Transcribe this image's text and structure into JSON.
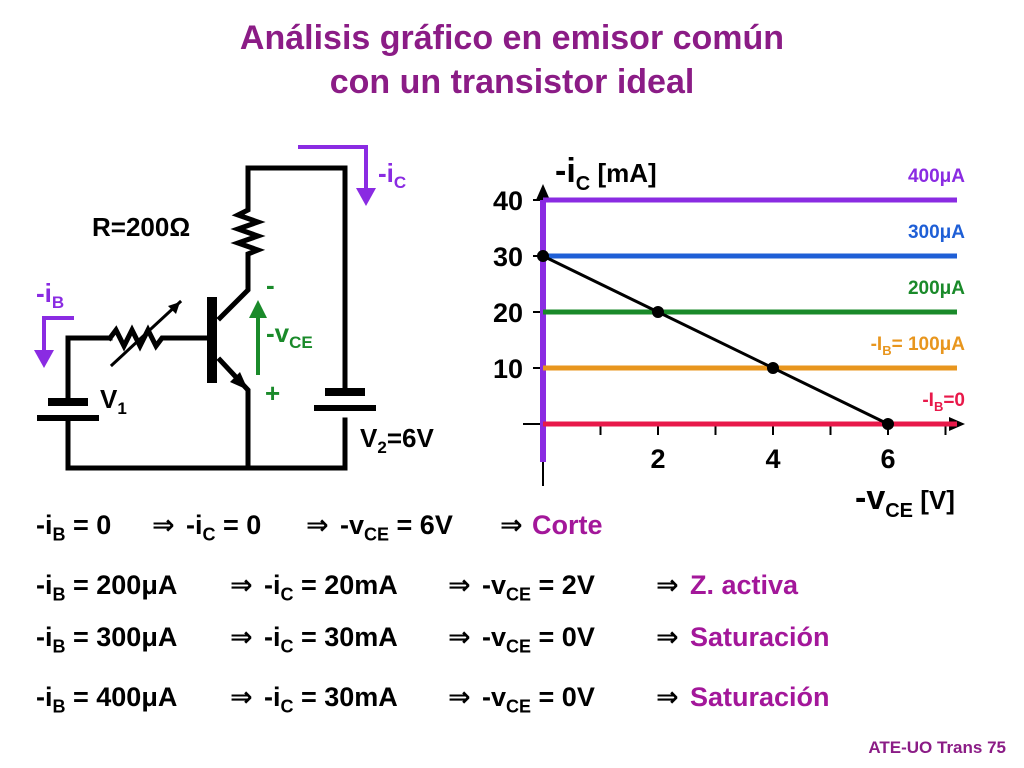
{
  "title": {
    "line1": "Análisis gráfico en emisor común",
    "line2": "con un transistor ideal"
  },
  "circuit": {
    "resistor_label": "R=200Ω",
    "ib_label": "-i",
    "ib_sub": "B",
    "ic_label": "-i",
    "ic_sub": "C",
    "vce_label": "-v",
    "vce_sub": "CE",
    "minus_sign": "-",
    "plus_sign": "+",
    "v1_label": "V",
    "v1_sub": "1",
    "v2_label": "V",
    "v2_sub": "2",
    "v2_value": "=6V"
  },
  "chart_data": {
    "type": "line",
    "ylabel_main": "-i",
    "ylabel_sub": "C",
    "ylabel_unit": "[mA]",
    "xlabel_main": "-v",
    "xlabel_sub": "CE",
    "xlabel_unit": "[V]",
    "xlim": [
      0,
      7.5
    ],
    "ylim": [
      0,
      45
    ],
    "y_ticks": [
      10,
      20,
      30,
      40
    ],
    "x_ticks": [
      2,
      4,
      6
    ],
    "x_minor_ticks": [
      1,
      2,
      3,
      4,
      5,
      6,
      7
    ],
    "curves": [
      {
        "prefix": "",
        "value": "400μA",
        "y": 40,
        "color": "#8a2be2"
      },
      {
        "prefix": "",
        "value": "300μA",
        "y": 30,
        "color": "#1f5fd6"
      },
      {
        "prefix": "",
        "value": "200μA",
        "y": 20,
        "color": "#1a8a2a"
      },
      {
        "prefix": "-I",
        "sub": "B",
        "value": "= 100μA",
        "y": 10,
        "color": "#e8961e"
      },
      {
        "prefix": "-I",
        "sub": "B",
        "value": "=0",
        "y": 0,
        "color": "#e8194a"
      }
    ],
    "load_line": {
      "x": [
        0,
        6
      ],
      "y": [
        30,
        0
      ],
      "color": "#000000"
    },
    "points": [
      {
        "x": 0,
        "y": 30
      },
      {
        "x": 2,
        "y": 20
      },
      {
        "x": 4,
        "y": 10
      },
      {
        "x": 6,
        "y": 0
      }
    ],
    "vertical_axis_color": "#8a2be2"
  },
  "equations": [
    {
      "ib": "0",
      "ic": "0",
      "vce": "6V",
      "result": "Corte"
    },
    {
      "ib": "200μA",
      "ic": "20mA",
      "vce": "2V",
      "result": "Z. activa"
    },
    {
      "ib": "300μA",
      "ic": "30mA",
      "vce": "0V",
      "result": "Saturación"
    },
    {
      "ib": "400μA",
      "ic": "30mA",
      "vce": "0V",
      "result": "Saturación"
    }
  ],
  "eq_text": {
    "ib_pre": "-i",
    "ib_sub": "B",
    "ic_pre": "-i",
    "ic_sub": "C",
    "vce_pre": "-v",
    "vce_sub": "CE",
    "eq": " = ",
    "arrow": "⇒"
  },
  "footer": "ATE-UO Trans 75"
}
